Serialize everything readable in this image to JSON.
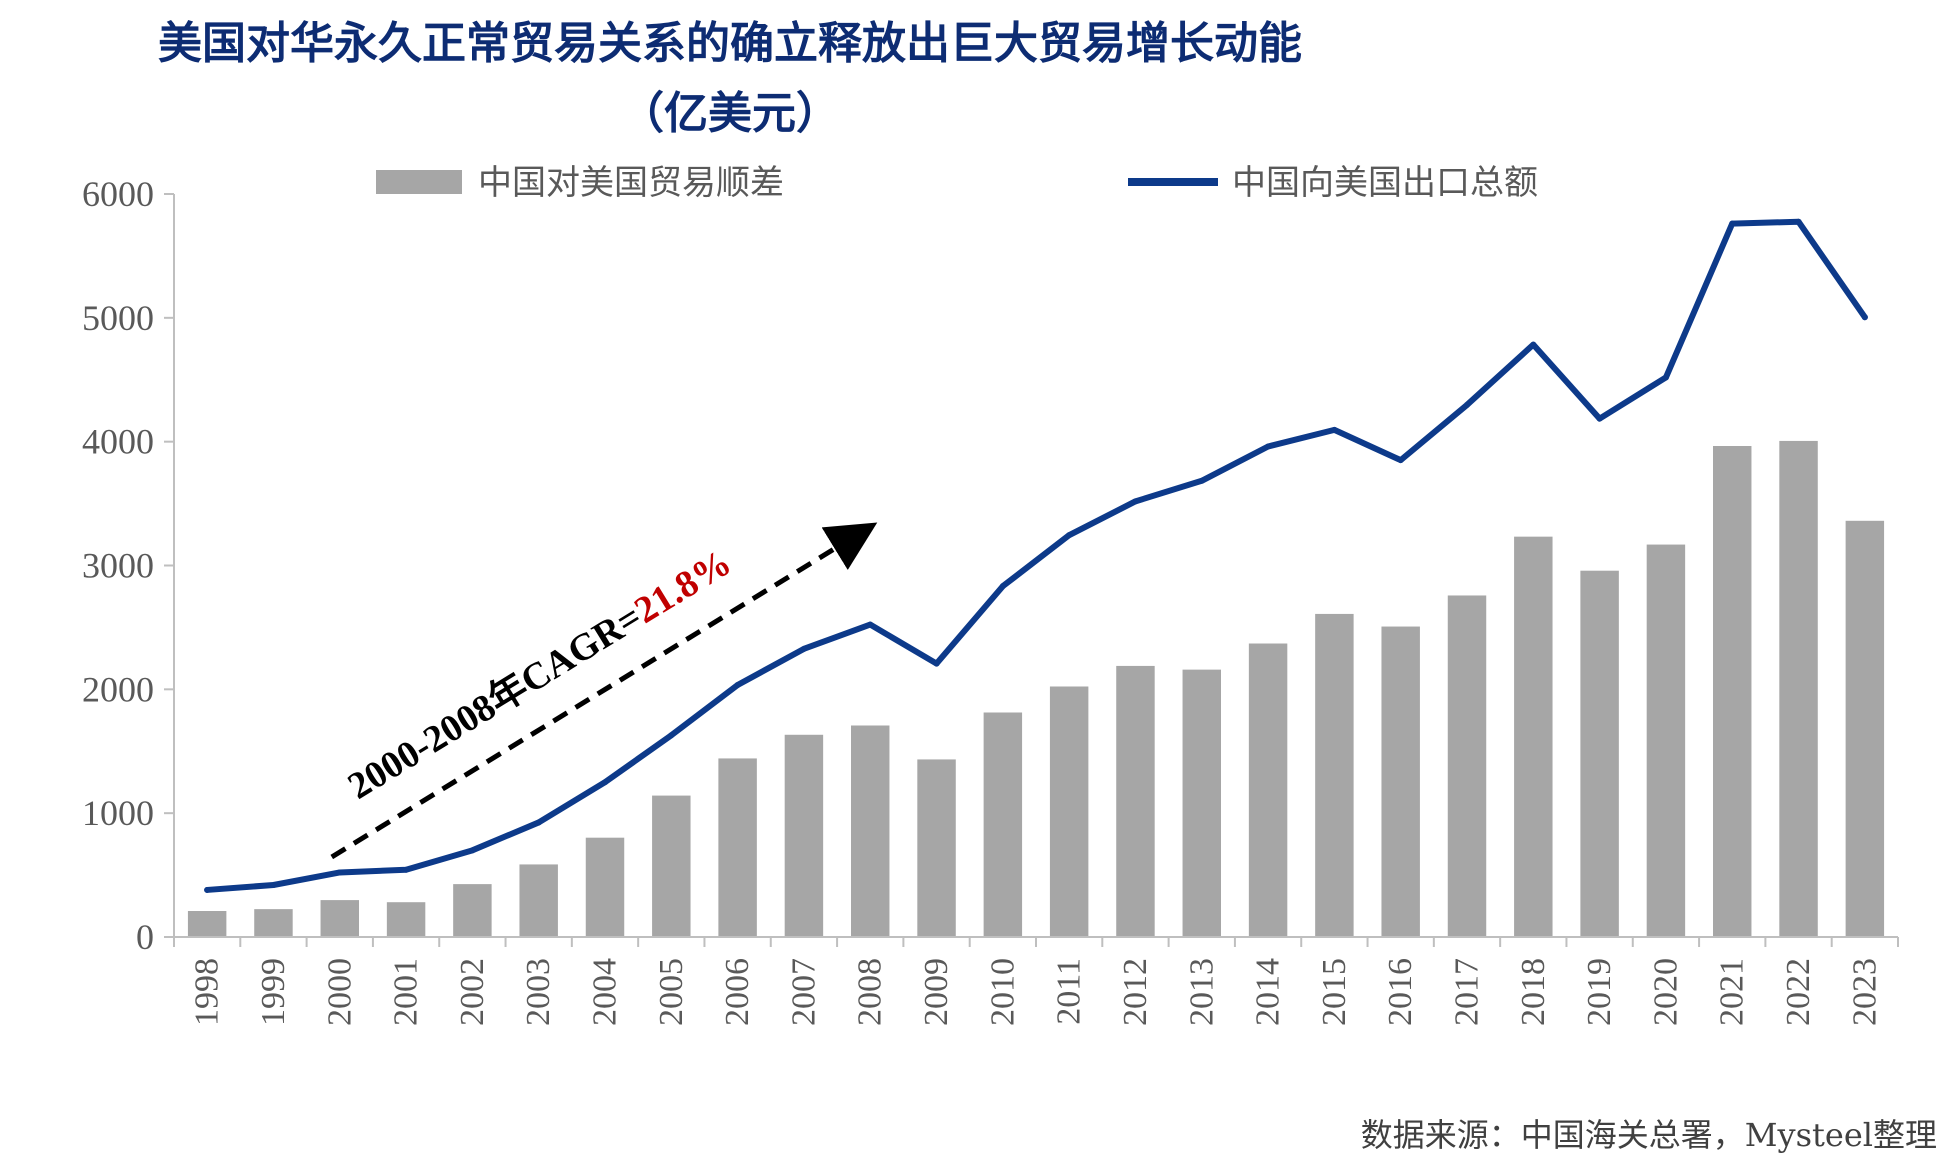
{
  "chart_data": {
    "type": "bar",
    "title_line1": "美国对华永久正常贸易关系的确立释放出巨大贸易增长动能",
    "title_line2": "（亿美元）",
    "categories": [
      "1998",
      "1999",
      "2000",
      "2001",
      "2002",
      "2003",
      "2004",
      "2005",
      "2006",
      "2007",
      "2008",
      "2009",
      "2010",
      "2011",
      "2012",
      "2013",
      "2014",
      "2015",
      "2016",
      "2017",
      "2018",
      "2019",
      "2020",
      "2021",
      "2022",
      "2023"
    ],
    "series": [
      {
        "name": "中国对美国贸易顺差",
        "type": "bar",
        "color": "#a6a6a6",
        "values": [
          210,
          225,
          298,
          281,
          427,
          586,
          802,
          1142,
          1442,
          1633,
          1708,
          1434,
          1813,
          2023,
          2189,
          2159,
          2370,
          2609,
          2507,
          2758,
          3233,
          2958,
          3169,
          3965,
          4006,
          3361
        ]
      },
      {
        "name": "中国向美国出口总额",
        "type": "line",
        "color": "#0d3a8a",
        "values": [
          380,
          420,
          521,
          543,
          700,
          925,
          1250,
          1629,
          2035,
          2327,
          2523,
          2208,
          2833,
          3245,
          3518,
          3684,
          3961,
          4095,
          3851,
          4297,
          4784,
          4186,
          4519,
          5761,
          5776,
          5005
        ]
      }
    ],
    "ylim": [
      0,
      6000
    ],
    "yticks": [
      0,
      1000,
      2000,
      3000,
      4000,
      5000,
      6000
    ],
    "annotation": {
      "prefix": "2000-2008年CAGR=",
      "value": "21.8%",
      "value_color": "#c00000",
      "from_year": "2000",
      "to_year": "2008"
    },
    "source": "数据来源：中国海关总署，Mysteel整理",
    "grid": false,
    "legend_position": "top"
  }
}
